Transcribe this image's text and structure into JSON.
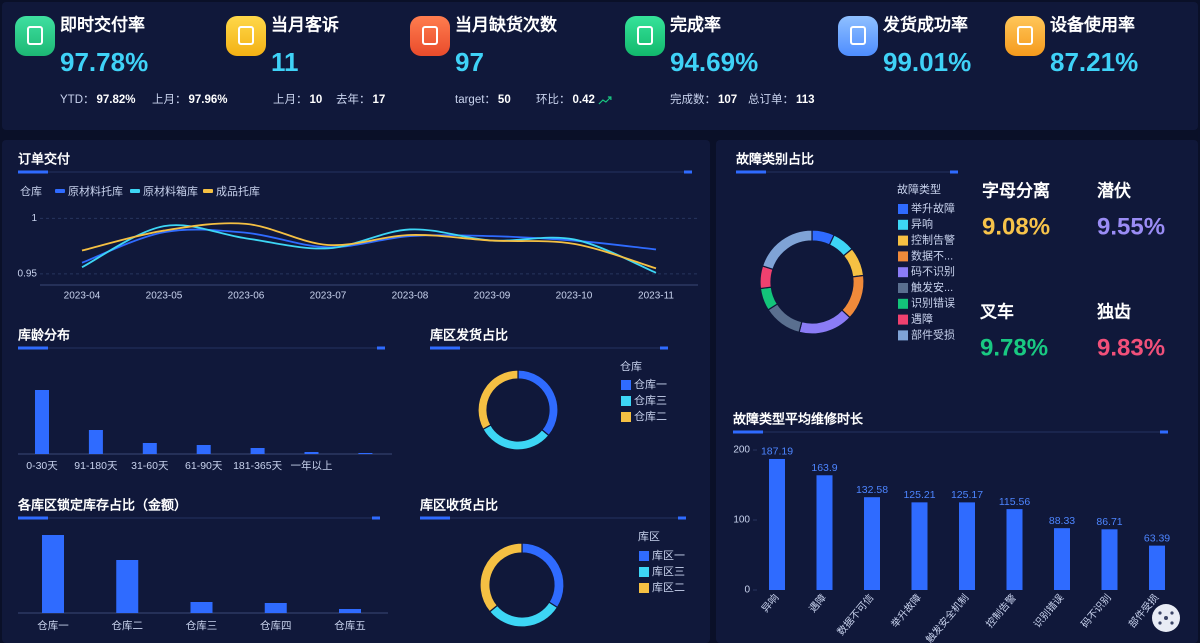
{
  "kpis": [
    {
      "title": "即时交付率",
      "value": "97.78%",
      "details": [
        {
          "label": "YTD：",
          "value": "97.82%"
        },
        {
          "label": "上月：",
          "value": "97.96%"
        }
      ]
    },
    {
      "title": "当月客诉",
      "value": "11",
      "details": [
        {
          "label": "上月：",
          "value": "10"
        },
        {
          "label": "去年：",
          "value": "17"
        }
      ]
    },
    {
      "title": "当月缺货次数",
      "value": "97",
      "details": [
        {
          "label": "target：",
          "value": "50"
        },
        {
          "label": "环比：",
          "value": "0.42"
        }
      ]
    },
    {
      "title": "完成率",
      "value": "94.69%",
      "details": [
        {
          "label": "完成数：",
          "value": "107"
        },
        {
          "label": "总订单：",
          "value": "113"
        }
      ]
    },
    {
      "title": "发货成功率",
      "value": "99.01%",
      "details": []
    },
    {
      "title": "设备使用率",
      "value": "87.21%",
      "details": []
    }
  ],
  "fault_stats": [
    {
      "label": "字母分离",
      "value": "9.08%",
      "color": "#f7c34a"
    },
    {
      "label": "潜伏",
      "value": "9.55%",
      "color": "#9a8cf5"
    },
    {
      "label": "叉车",
      "value": "9.78%",
      "color": "#19c982"
    },
    {
      "label": "独齿",
      "value": "9.83%",
      "color": "#f1507a"
    }
  ],
  "chart_data": [
    {
      "type": "line",
      "title": "订单交付",
      "legend_title": "仓库",
      "x": [
        "2023-04",
        "2023-05",
        "2023-06",
        "2023-07",
        "2023-08",
        "2023-09",
        "2023-10",
        "2023-11"
      ],
      "series": [
        {
          "name": "原材料托库",
          "color": "#2f6bff",
          "values": [
            0.96,
            0.9875,
            0.987,
            0.974,
            0.984,
            0.984,
            0.98,
            0.972
          ]
        },
        {
          "name": "原材料箱库",
          "color": "#3dd6f5",
          "values": [
            0.956,
            0.993,
            0.982,
            0.973,
            0.99,
            0.98,
            0.981,
            0.951
          ]
        },
        {
          "name": "成品托库",
          "color": "#f5c043",
          "values": [
            0.971,
            0.989,
            0.995,
            0.976,
            0.985,
            0.98,
            0.977,
            0.955
          ]
        }
      ],
      "ylim": [
        0.94,
        1.012
      ],
      "yticks": [
        0.95,
        1
      ],
      "grid": true
    },
    {
      "type": "bar",
      "title": "库龄分布",
      "categories": [
        "0-30天",
        "91-180天",
        "31-60天",
        "61-90天",
        "181-365天",
        "一年以上",
        null
      ],
      "values": [
        64,
        24,
        11,
        9,
        6,
        2,
        1
      ],
      "color": "#2f6bff"
    },
    {
      "type": "pie",
      "title": "库区发货占比",
      "legend_title": "仓库",
      "categories": [
        "仓库一",
        "仓库三",
        "仓库二"
      ],
      "values": [
        36,
        31,
        33
      ],
      "colors": [
        "#2f6bff",
        "#3dd6f5",
        "#f5c043"
      ]
    },
    {
      "type": "bar",
      "title": "各库区锁定库存占比（金额）",
      "categories": [
        "仓库一",
        "仓库二",
        "仓库三",
        "仓库四",
        "仓库五"
      ],
      "values": [
        78,
        53,
        11,
        10,
        4
      ],
      "color": "#2f6bff"
    },
    {
      "type": "pie",
      "title": "库区收货占比",
      "legend_title": "库区",
      "categories": [
        "库区一",
        "库区三",
        "库区二"
      ],
      "values": [
        34,
        30,
        36
      ],
      "colors": [
        "#2f6bff",
        "#3dd6f5",
        "#f5c043"
      ]
    },
    {
      "type": "pie",
      "title": "故障类别占比",
      "legend_title": "故障类型",
      "categories": [
        "举升故障",
        "异响",
        "控制告警",
        "数据不...",
        "码不识别",
        "触发安...",
        "识别错误",
        "遇障",
        "部件受损"
      ],
      "values": [
        7,
        7,
        9,
        14,
        17,
        12,
        7,
        7,
        20
      ],
      "colors": [
        "#2f6bff",
        "#3dd6f5",
        "#f5c043",
        "#f08a3a",
        "#8b7cf6",
        "#5a6f8f",
        "#13c47a",
        "#f0416f",
        "#7fa3d6"
      ]
    },
    {
      "type": "bar",
      "title": "故障类型平均维修时长",
      "categories": [
        "异响",
        "遇障",
        "数据不可信",
        "举升故障",
        "触发安全机制",
        "控制告警",
        "识别错误",
        "码不识别",
        "部件受损"
      ],
      "values": [
        187.19,
        163.9,
        132.58,
        125.21,
        125.17,
        115.56,
        88.33,
        86.71,
        63.39
      ],
      "color": "#2f6bff",
      "ylim": [
        0,
        220
      ],
      "yticks": [
        0,
        100,
        200
      ]
    }
  ]
}
